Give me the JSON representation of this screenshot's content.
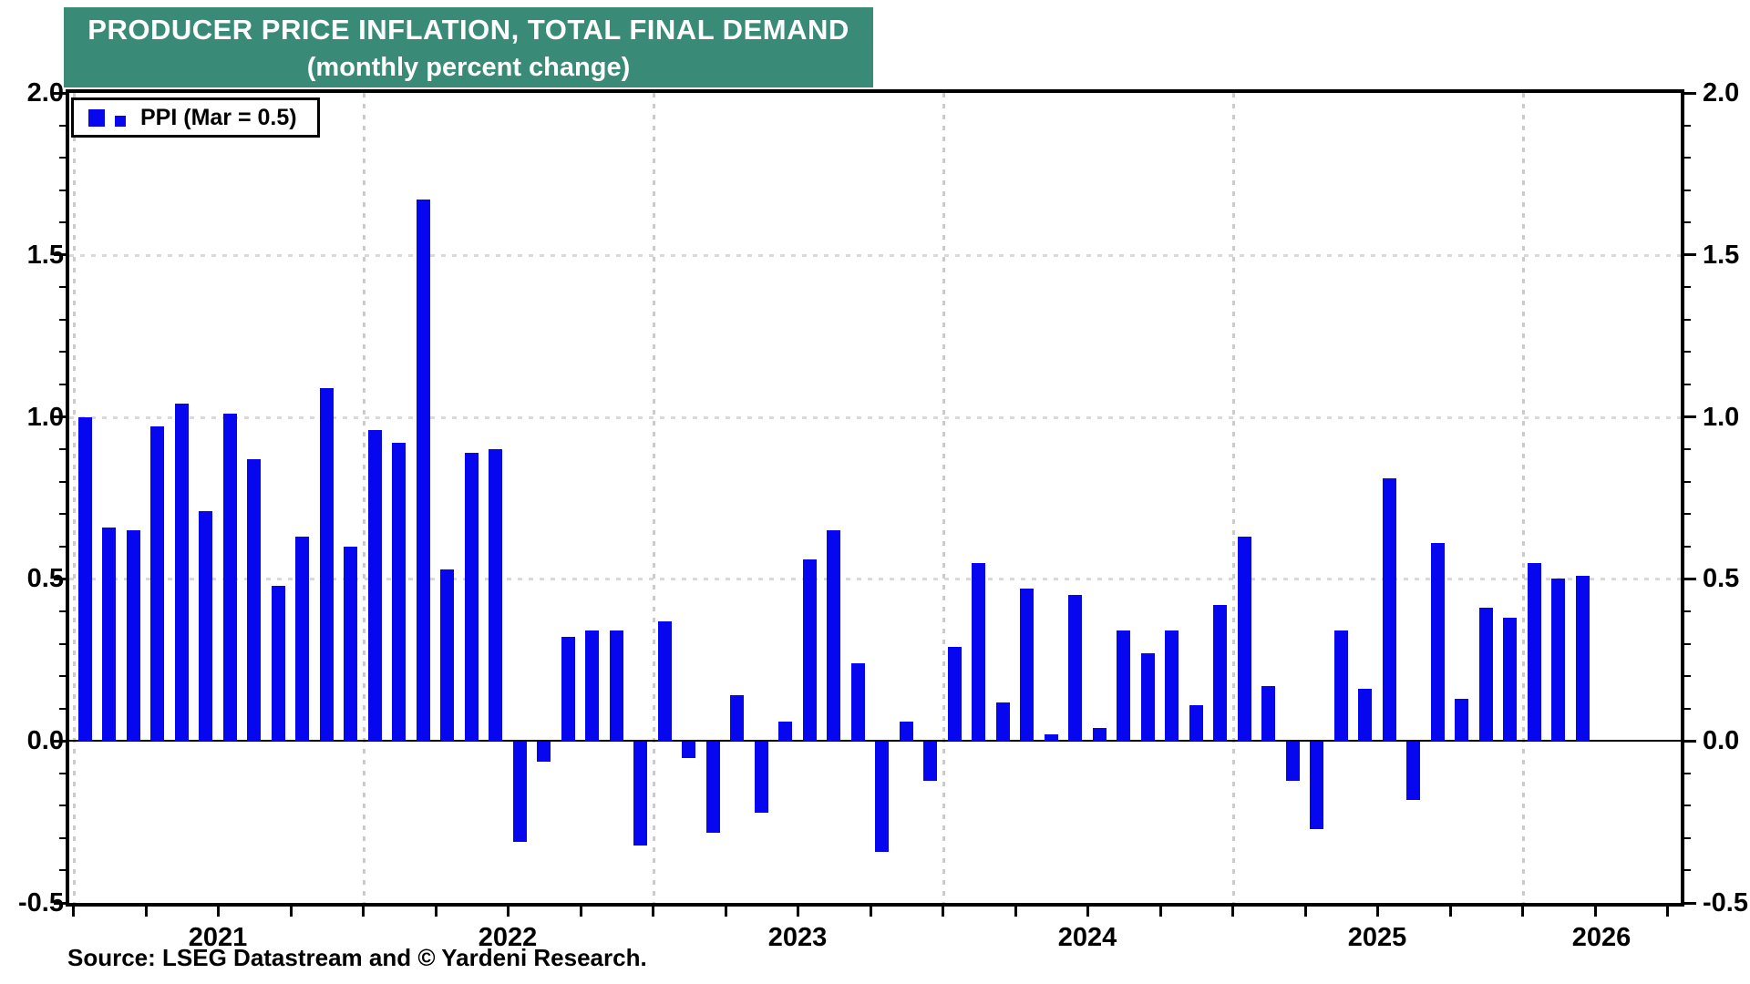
{
  "title": {
    "line1": "PRODUCER PRICE INFLATION, TOTAL FINAL DEMAND",
    "line2": "(monthly percent change)"
  },
  "legend": {
    "label": "PPI (Mar = 0.5)"
  },
  "source": "Source: LSEG Datastream and © Yardeni Research.",
  "colors": {
    "bar": "#0707EF",
    "title_bg": "#3A8A78",
    "h_grid": "#D9D9D9",
    "year_grid": "#CBCBCB",
    "axis": "#000000"
  },
  "y_axis": {
    "tick_labels": [
      "2.0",
      "1.5",
      "1.0",
      "0.5",
      "0.0",
      "-0.5"
    ],
    "min": -0.5,
    "max": 2.0,
    "major_step": 0.5,
    "minor_step": 0.1
  },
  "x_axis": {
    "year_labels": [
      "2021",
      "2022",
      "2023",
      "2024",
      "2025",
      "2026"
    ]
  },
  "chart_data": {
    "type": "bar",
    "title": "PRODUCER PRICE INFLATION, TOTAL FINAL DEMAND",
    "subtitle": "(monthly percent change)",
    "legend": "PPI (Mar = 0.5)",
    "ylabel": "monthly percent change",
    "ylim": [
      -0.5,
      2.0
    ],
    "grid": "dotted horizontal at 0.5 steps, dotted vertical at year starts",
    "legend_position": "top-left",
    "start_month": "2021-01",
    "end_month": "2026-03",
    "months": [
      "Jan 2021",
      "Feb 2021",
      "Mar 2021",
      "Apr 2021",
      "May 2021",
      "Jun 2021",
      "Jul 2021",
      "Aug 2021",
      "Sep 2021",
      "Oct 2021",
      "Nov 2021",
      "Dec 2021",
      "Jan 2022",
      "Feb 2022",
      "Mar 2022",
      "Apr 2022",
      "May 2022",
      "Jun 2022",
      "Jul 2022",
      "Aug 2022",
      "Sep 2022",
      "Oct 2022",
      "Nov 2022",
      "Dec 2022",
      "Jan 2023",
      "Feb 2023",
      "Mar 2023",
      "Apr 2023",
      "May 2023",
      "Jun 2023",
      "Jul 2023",
      "Aug 2023",
      "Sep 2023",
      "Oct 2023",
      "Nov 2023",
      "Dec 2023",
      "Jan 2024",
      "Feb 2024",
      "Mar 2024",
      "Apr 2024",
      "May 2024",
      "Jun 2024",
      "Jul 2024",
      "Aug 2024",
      "Sep 2024",
      "Oct 2024",
      "Nov 2024",
      "Dec 2024",
      "Jan 2025",
      "Feb 2025",
      "Mar 2025",
      "Apr 2025",
      "May 2025",
      "Jun 2025",
      "Jul 2025",
      "Aug 2025",
      "Sep 2025",
      "Oct 2025",
      "Nov 2025",
      "Dec 2025",
      "Jan 2026",
      "Feb 2026",
      "Mar 2026"
    ],
    "values": [
      1.0,
      0.66,
      0.65,
      0.97,
      1.04,
      0.71,
      1.01,
      0.87,
      0.48,
      0.63,
      1.09,
      0.6,
      0.96,
      0.92,
      1.67,
      0.53,
      0.89,
      0.9,
      -0.31,
      -0.06,
      0.32,
      0.34,
      0.34,
      -0.32,
      0.37,
      -0.05,
      -0.28,
      0.14,
      -0.22,
      0.06,
      0.56,
      0.65,
      0.24,
      -0.34,
      0.06,
      -0.12,
      0.29,
      0.55,
      0.12,
      0.47,
      0.02,
      0.45,
      0.04,
      0.34,
      0.27,
      0.34,
      0.11,
      0.42,
      0.63,
      0.17,
      -0.12,
      -0.27,
      0.34,
      0.16,
      0.81,
      -0.18,
      0.61,
      0.13,
      0.41,
      0.38,
      0.55,
      0.5,
      0.51
    ]
  }
}
